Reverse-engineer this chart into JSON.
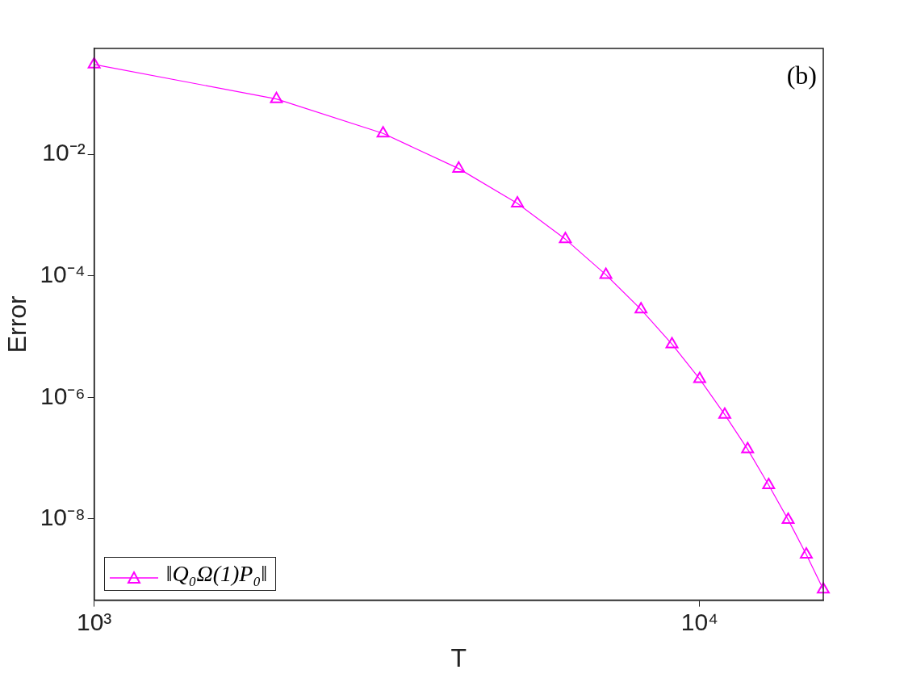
{
  "chart_data": {
    "type": "line",
    "xlabel": "T",
    "ylabel": "Error",
    "log": "xy",
    "grid": false,
    "legend": "bottom left",
    "marker": "triangle",
    "line_style": "solid",
    "x": [
      1000,
      2000,
      3000,
      4000,
      5000,
      6000,
      7000,
      8000,
      9000,
      10000,
      11000,
      12000,
      13000,
      14000,
      15000,
      16000
    ],
    "series": [
      {
        "name": "‖Q₀Ω(1)P₀‖",
        "color": "#ff00ff",
        "values": [
          0.3,
          0.081,
          0.022,
          0.0058,
          0.00155,
          0.0004,
          0.000104,
          2.8e-05,
          7.5e-06,
          2e-06,
          5.2e-07,
          1.4e-07,
          3.6e-08,
          9.7e-09,
          2.6e-09,
          6.9e-10
        ]
      }
    ],
    "xlim": [
      1000,
      16000
    ],
    "xticks": [
      {
        "value": 1000,
        "label": "10³"
      },
      {
        "value": 10000,
        "label": "10⁴"
      }
    ],
    "ylim": [
      4.6e-10,
      0.55
    ],
    "yticks": [
      {
        "value": 1e-08,
        "label": "10⁻⁸"
      },
      {
        "value": 1e-06,
        "label": "10⁻⁶"
      },
      {
        "value": 0.0001,
        "label": "10⁻⁴"
      },
      {
        "value": 0.01,
        "label": "10⁻²"
      }
    ],
    "annotations": [
      "(b)"
    ]
  }
}
